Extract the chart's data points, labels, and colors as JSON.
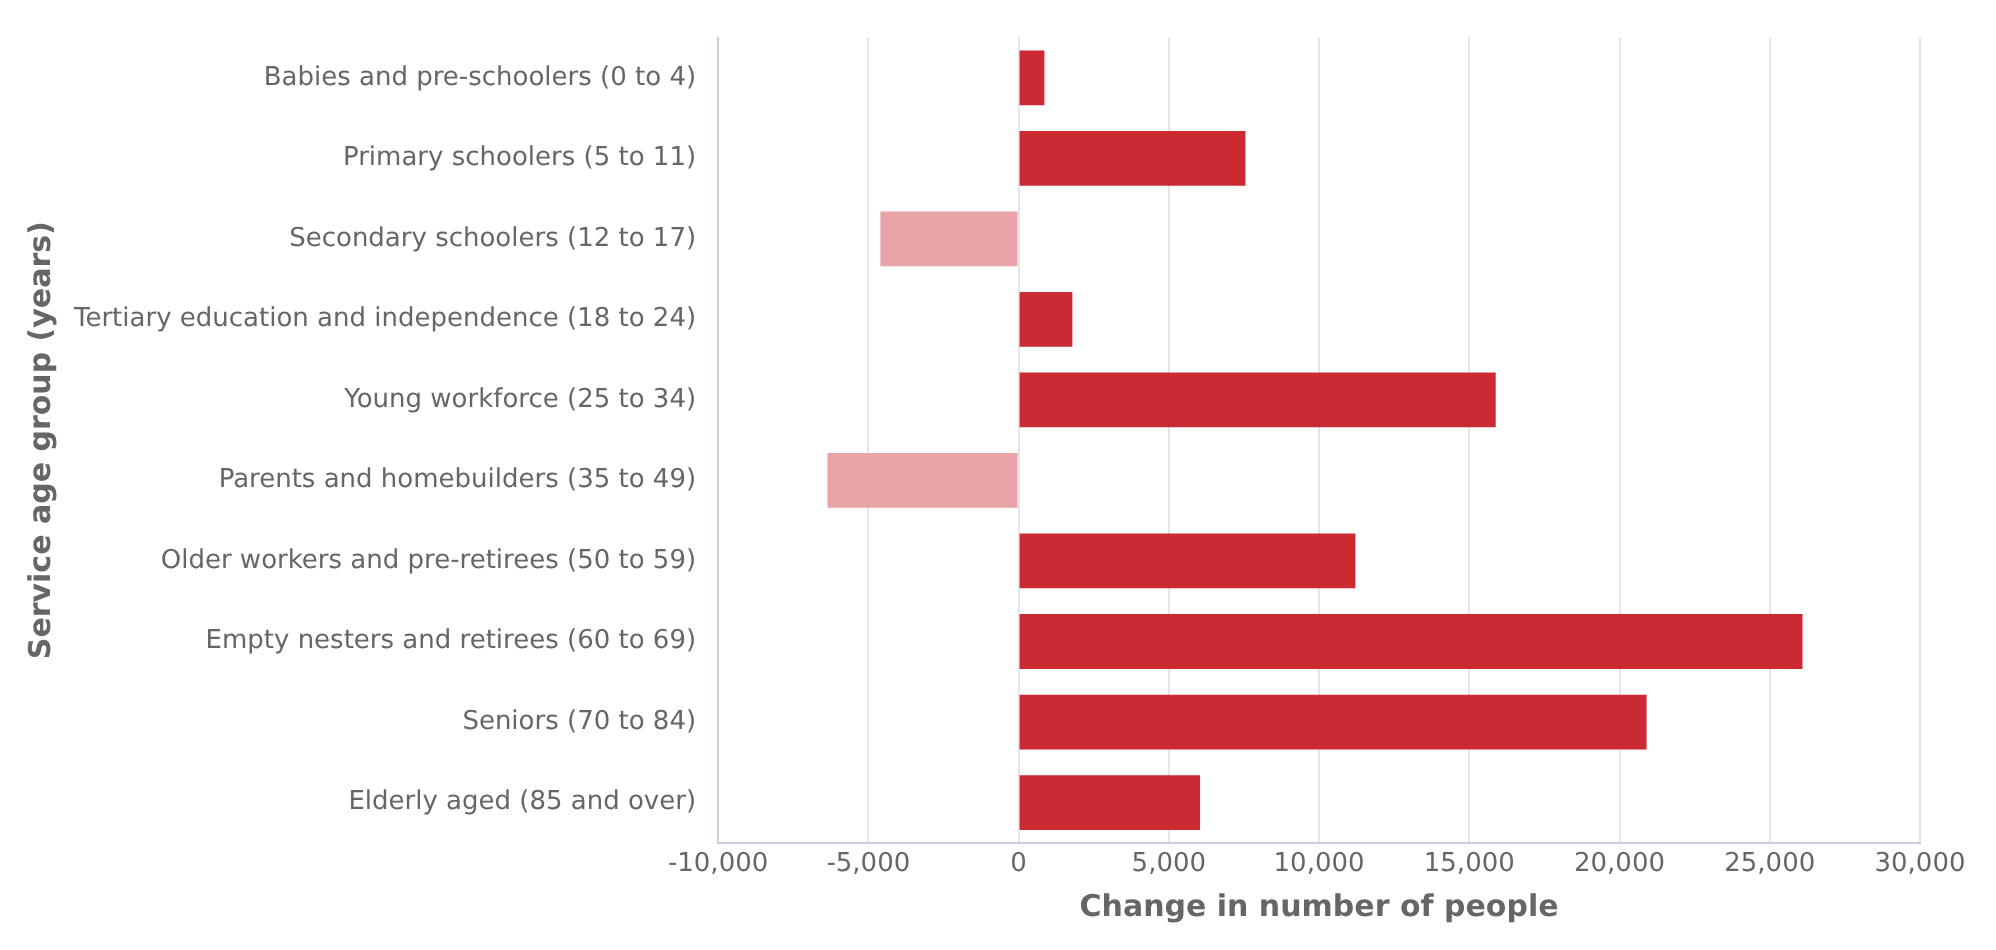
{
  "chart_data": {
    "type": "bar",
    "orientation": "horizontal",
    "xlabel": "Change in number of people",
    "ylabel": "Service age group (years)",
    "categories": [
      "Babies and pre-schoolers (0 to 4)",
      "Primary schoolers (5 to 11)",
      "Secondary schoolers (12 to 17)",
      "Tertiary education and independence (18 to 24)",
      "Young workforce (25 to 34)",
      "Parents and homebuilders (35 to 49)",
      "Older workers and pre-retirees (50 to 59)",
      "Empty nesters and retirees (60 to 69)",
      "Seniors (70 to 84)",
      "Elderly aged (85 and over)"
    ],
    "values": [
      860,
      7550,
      -4600,
      1790,
      15880,
      -6360,
      11210,
      26090,
      20900,
      6040
    ],
    "colors": [
      "#cc2a33",
      "#cc2a33",
      "#e8a4a7",
      "#cc2a33",
      "#cc2a33",
      "#e8a4a7",
      "#cc2a33",
      "#cc2a33",
      "#cc2a33",
      "#cc2a33"
    ],
    "xlim": [
      -10000,
      30000
    ],
    "xticks": [
      {
        "value": -10000,
        "label": "-10,000"
      },
      {
        "value": -5000,
        "label": "-5,000"
      },
      0,
      {
        "value": 5000,
        "label": "5,000"
      },
      {
        "value": 10000,
        "label": "10,000"
      },
      {
        "value": 15000,
        "label": "15,000"
      },
      {
        "value": 20000,
        "label": "20,000"
      },
      {
        "value": 25000,
        "label": "25,000"
      },
      {
        "value": 30000,
        "label": "30,000"
      }
    ],
    "grid": "x",
    "legend": false
  }
}
